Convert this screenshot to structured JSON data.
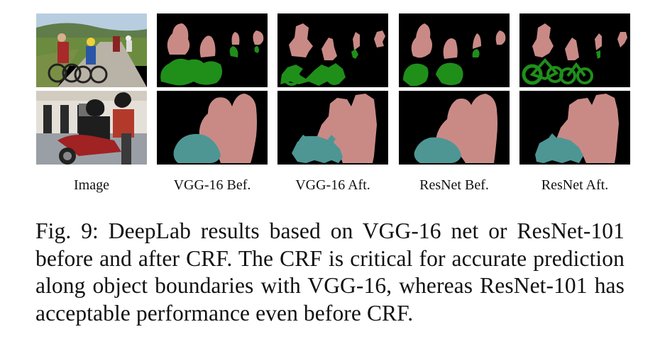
{
  "figure": {
    "column_labels": [
      "Image",
      "VGG-16 Bef.",
      "VGG-16 Aft.",
      "ResNet Bef.",
      "ResNet Aft."
    ],
    "colors": {
      "person": "#c98a86",
      "bicycle": "#1f8f1a",
      "motorbike": "#4d9694",
      "background": "#000000"
    },
    "caption": "Fig. 9: DeepLab results based on VGG-16 net or ResNet-101 before and after CRF. The CRF is critical for accurate prediction along object boundaries with VGG-16, whereas ResNet-101 has acceptable performance even before CRF."
  }
}
